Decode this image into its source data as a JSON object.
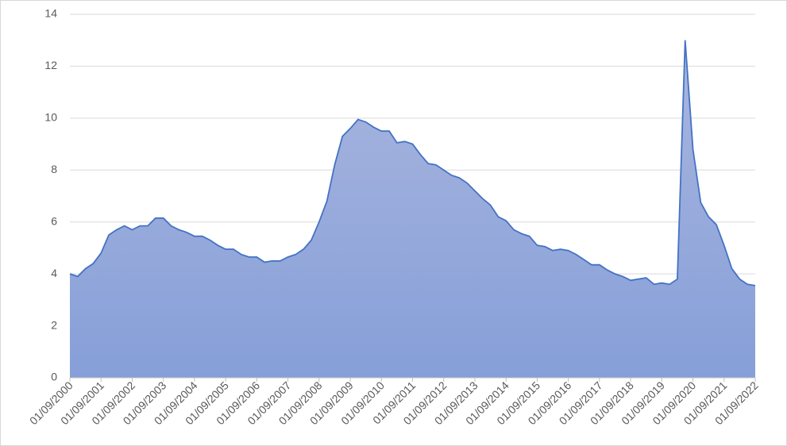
{
  "chart_data": {
    "type": "area",
    "categories": [
      "01/09/2000",
      null,
      null,
      null,
      "01/09/2001",
      null,
      null,
      null,
      "01/09/2002",
      null,
      null,
      null,
      "01/09/2003",
      null,
      null,
      null,
      "01/09/2004",
      null,
      null,
      null,
      "01/09/2005",
      null,
      null,
      null,
      "01/09/2006",
      null,
      null,
      null,
      "01/09/2007",
      null,
      null,
      null,
      "01/09/2008",
      null,
      null,
      null,
      "01/09/2009",
      null,
      null,
      null,
      "01/09/2010",
      null,
      null,
      null,
      "01/09/2011",
      null,
      null,
      null,
      "01/09/2012",
      null,
      null,
      null,
      "01/09/2013",
      null,
      null,
      null,
      "01/09/2014",
      null,
      null,
      null,
      "01/09/2015",
      null,
      null,
      null,
      "01/09/2016",
      null,
      null,
      null,
      "01/09/2017",
      null,
      null,
      null,
      "01/09/2018",
      null,
      null,
      null,
      "01/09/2019",
      null,
      null,
      null,
      "01/09/2020",
      null,
      null,
      null,
      "01/09/2021",
      null,
      null,
      null,
      "01/09/2022"
    ],
    "values": [
      4.0,
      3.9,
      4.2,
      4.4,
      4.8,
      5.5,
      5.7,
      5.85,
      5.7,
      5.85,
      5.85,
      6.15,
      6.15,
      5.85,
      5.7,
      5.6,
      5.45,
      5.45,
      5.3,
      5.1,
      4.95,
      4.95,
      4.75,
      4.65,
      4.65,
      4.45,
      4.5,
      4.5,
      4.65,
      4.75,
      4.95,
      5.3,
      6.0,
      6.8,
      8.2,
      9.3,
      9.6,
      9.95,
      9.85,
      9.65,
      9.5,
      9.5,
      9.05,
      9.1,
      9.0,
      8.6,
      8.25,
      8.2,
      8.0,
      7.8,
      7.7,
      7.5,
      7.2,
      6.9,
      6.65,
      6.2,
      6.05,
      5.7,
      5.55,
      5.45,
      5.1,
      5.05,
      4.9,
      4.95,
      4.9,
      4.75,
      4.55,
      4.35,
      4.35,
      4.15,
      4.0,
      3.9,
      3.75,
      3.8,
      3.85,
      3.6,
      3.65,
      3.6,
      3.8,
      13.0,
      8.8,
      6.75,
      6.2,
      5.9,
      5.1,
      4.2,
      3.8,
      3.6,
      3.55
    ],
    "color": "#4472c4",
    "ylim": [
      0,
      14
    ],
    "yticks": [
      0,
      2,
      4,
      6,
      8,
      10,
      12,
      14
    ],
    "grid": true
  }
}
